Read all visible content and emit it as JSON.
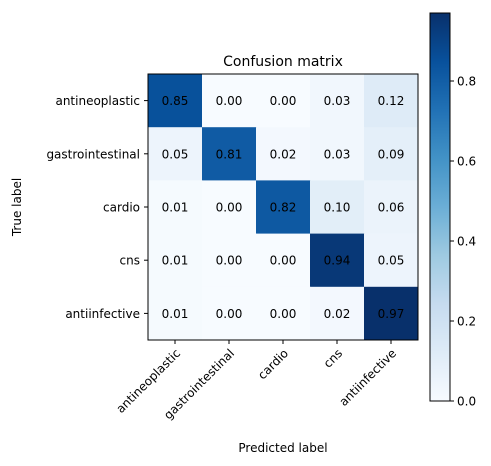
{
  "chart_data": {
    "type": "heatmap",
    "title": "Confusion matrix",
    "xlabel": "Predicted label",
    "ylabel": "True label",
    "categories": [
      "antineoplastic",
      "gastrointestinal",
      "cardio",
      "cns",
      "antiinfective"
    ],
    "x_tick_labels": [
      "antineoplastic",
      "gastrointestinal",
      "cardio",
      "cns",
      "antiinfective"
    ],
    "y_tick_labels": [
      "antineoplastic",
      "gastrointestinal",
      "cardio",
      "cns",
      "antiinfective"
    ],
    "values": [
      [
        0.85,
        0.0,
        0.0,
        0.03,
        0.12
      ],
      [
        0.05,
        0.81,
        0.02,
        0.03,
        0.09
      ],
      [
        0.01,
        0.0,
        0.82,
        0.1,
        0.06
      ],
      [
        0.01,
        0.0,
        0.0,
        0.94,
        0.05
      ],
      [
        0.01,
        0.0,
        0.0,
        0.02,
        0.97
      ]
    ],
    "cell_labels": [
      [
        "0.85",
        "0.00",
        "0.00",
        "0.03",
        "0.12"
      ],
      [
        "0.05",
        "0.81",
        "0.02",
        "0.03",
        "0.09"
      ],
      [
        "0.01",
        "0.00",
        "0.82",
        "0.10",
        "0.06"
      ],
      [
        "0.01",
        "0.00",
        "0.00",
        "0.94",
        "0.05"
      ],
      [
        "0.01",
        "0.00",
        "0.00",
        "0.02",
        "0.97"
      ]
    ],
    "colormap": "Blues",
    "colormap_stops": [
      "#f7fbff",
      "#deebf7",
      "#c6dbef",
      "#9ecae1",
      "#6baed6",
      "#4292c6",
      "#2171b5",
      "#08519c",
      "#08306b"
    ],
    "colorbar": {
      "range": [
        0.0,
        0.97
      ],
      "ticks": [
        0.0,
        0.2,
        0.4,
        0.6,
        0.8
      ],
      "tick_labels": [
        "0.0",
        "0.2",
        "0.4",
        "0.6",
        "0.8"
      ]
    },
    "text_colors": {
      "dark_cell": "#ffffff",
      "light_cell": "#000000"
    },
    "grid": false
  }
}
